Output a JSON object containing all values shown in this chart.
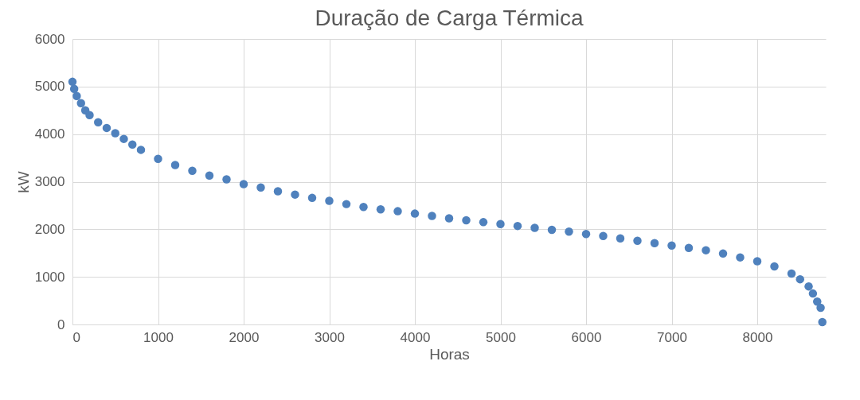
{
  "chart_data": {
    "type": "scatter",
    "title": "Duração de Carga Térmica",
    "xlabel": "Horas",
    "ylabel": "kW",
    "x": [
      0,
      20,
      50,
      100,
      150,
      200,
      300,
      400,
      500,
      600,
      700,
      800,
      1000,
      1200,
      1400,
      1600,
      1800,
      2000,
      2200,
      2400,
      2600,
      2800,
      3000,
      3200,
      3400,
      3600,
      3800,
      4000,
      4200,
      4400,
      4600,
      4800,
      5000,
      5200,
      5400,
      5600,
      5800,
      6000,
      6200,
      6400,
      6600,
      6800,
      7000,
      7200,
      7400,
      7600,
      7800,
      8000,
      8200,
      8400,
      8500,
      8600,
      8650,
      8700,
      8740,
      8760
    ],
    "series": [
      {
        "color": "#4f81bd",
        "values": [
          5100,
          4950,
          4800,
          4650,
          4500,
          4400,
          4250,
          4130,
          4020,
          3900,
          3780,
          3670,
          3480,
          3350,
          3230,
          3130,
          3050,
          2950,
          2880,
          2800,
          2730,
          2660,
          2600,
          2530,
          2470,
          2420,
          2380,
          2330,
          2280,
          2230,
          2190,
          2150,
          2110,
          2070,
          2030,
          1990,
          1950,
          1900,
          1860,
          1810,
          1760,
          1710,
          1660,
          1610,
          1560,
          1490,
          1410,
          1330,
          1220,
          1070,
          950,
          800,
          650,
          480,
          350,
          50
        ]
      }
    ],
    "xlim": [
      0,
      8800
    ],
    "xticks": [
      0,
      1000,
      2000,
      3000,
      4000,
      5000,
      6000,
      7000,
      8000
    ],
    "ylim": [
      0,
      6000
    ],
    "yticks": [
      0,
      1000,
      2000,
      3000,
      4000,
      5000,
      6000
    ],
    "grid": true,
    "marker": "circle",
    "legend": false
  }
}
